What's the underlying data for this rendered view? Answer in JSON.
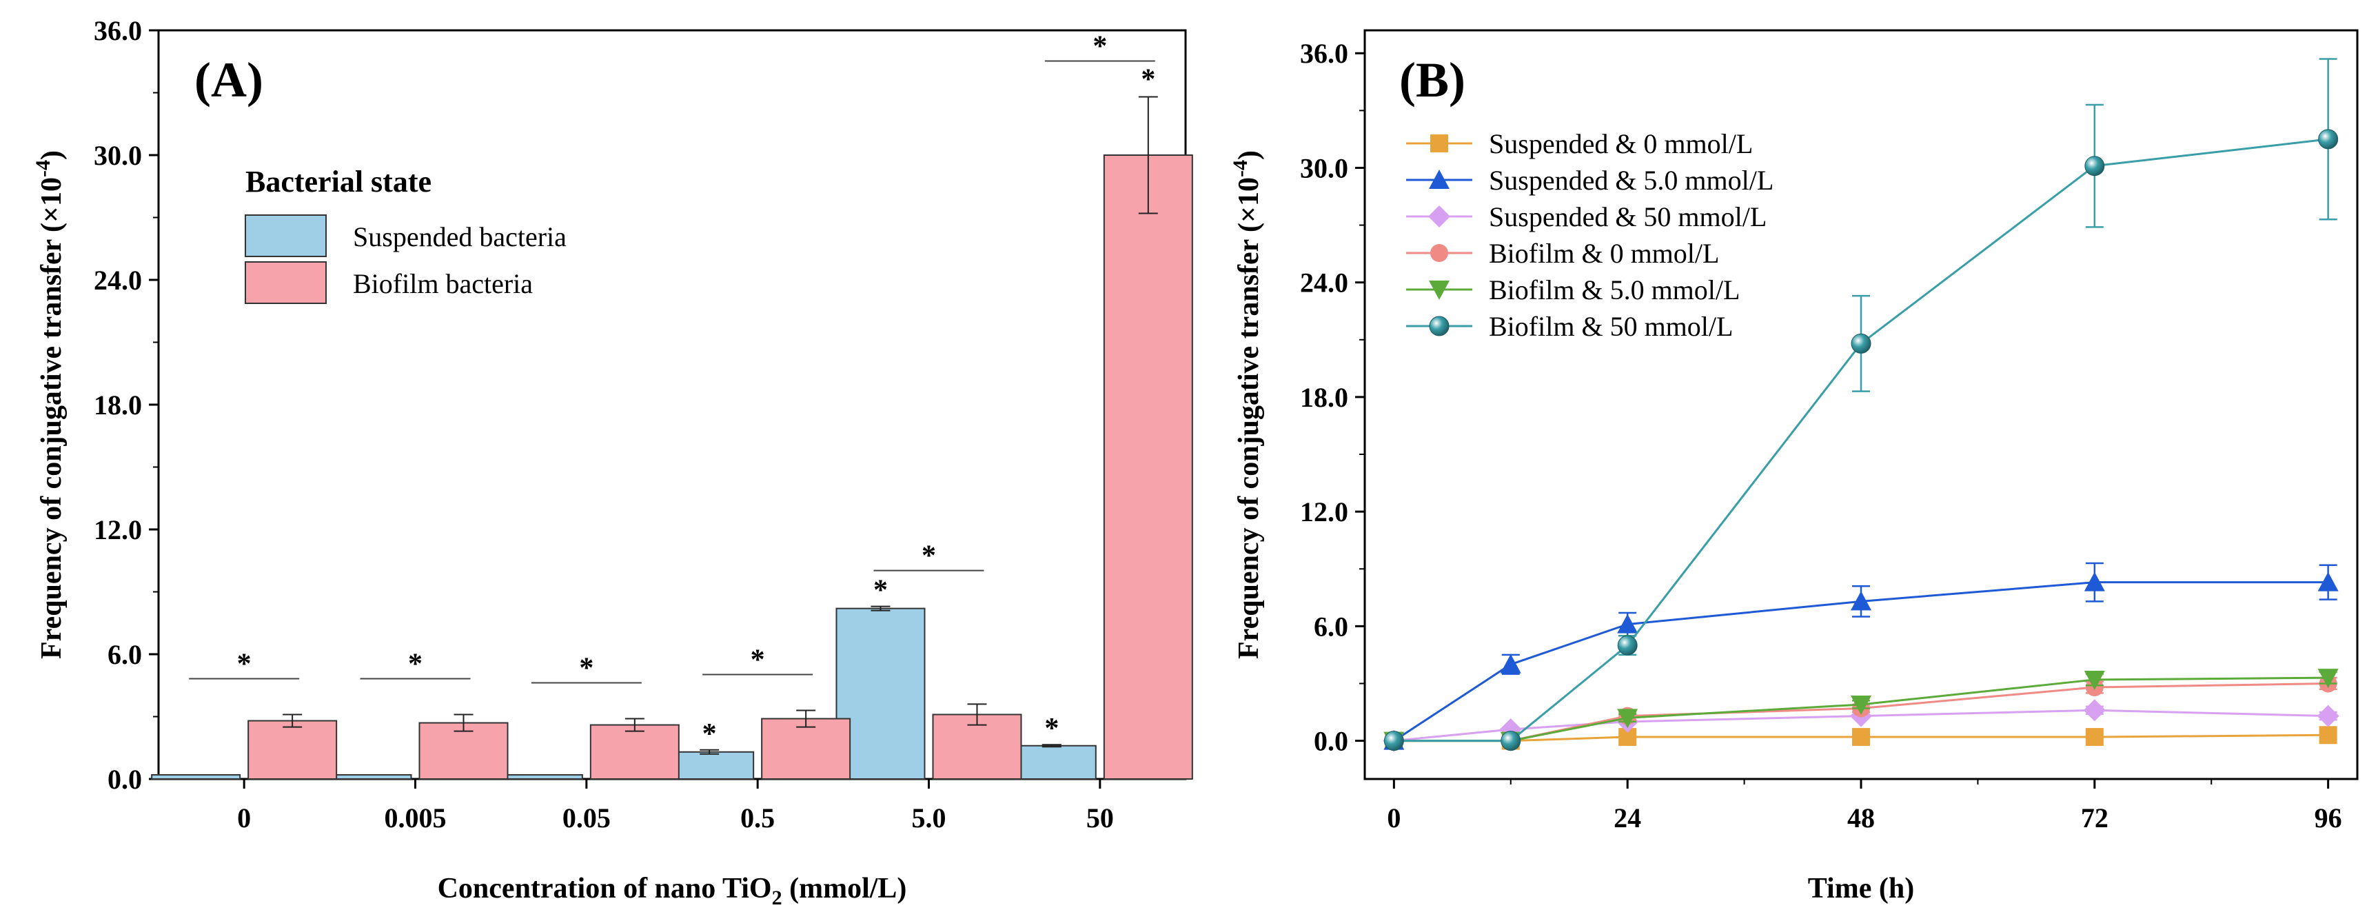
{
  "colors": {
    "suspended_bar": "#9ecfe6",
    "biofilm_bar": "#f6a3ab",
    "axis": "#000000",
    "sus0": "#e8a33b",
    "sus5": "#1f5ad6",
    "sus50": "#d8a0f0",
    "bio0": "#ef8a84",
    "bio5": "#5cab3a",
    "bio50": "#3a9ea8"
  },
  "chart_data": [
    {
      "type": "bar",
      "panel_label": "(A)",
      "xlabel_main": "Concentration of nano TiO",
      "xlabel_sub": "2",
      "xlabel_tail": " (mmol/L)",
      "ylabel": "Frequency of conjugative transfer (×10",
      "ylabel_sup": "-4",
      "ylabel_tail": ")",
      "ylim": [
        0,
        36
      ],
      "yticks": [
        "0.0",
        "6.0",
        "12.0",
        "18.0",
        "24.0",
        "30.0",
        "36.0"
      ],
      "ytick_values": [
        0,
        6,
        12,
        18,
        24,
        30,
        36
      ],
      "categories": [
        "0",
        "0.005",
        "0.05",
        "0.5",
        "5.0",
        "50"
      ],
      "legend_title": "Bacterial state",
      "series": [
        {
          "name": "Suspended bacteria",
          "color_key": "suspended_bar",
          "values": [
            0.2,
            0.2,
            0.2,
            1.3,
            8.2,
            1.6
          ],
          "errors": [
            0,
            0,
            0,
            0.1,
            0.1,
            0.05
          ]
        },
        {
          "name": "Biofilm bacteria",
          "color_key": "biofilm_bar",
          "values": [
            2.8,
            2.7,
            2.6,
            2.9,
            3.1,
            30.0
          ],
          "errors": [
            0.3,
            0.4,
            0.3,
            0.4,
            0.5,
            2.8
          ]
        }
      ],
      "annotations": {
        "marker": "*",
        "pair_brackets": [
          0,
          1,
          2,
          3,
          4,
          5
        ],
        "suspended_stars": [
          3,
          4,
          5
        ],
        "biofilm_stars": [
          5
        ]
      }
    },
    {
      "type": "line",
      "panel_label": "(B)",
      "xlabel": "Time (h)",
      "ylabel": "Frequency of conjugative transfer (×10",
      "ylabel_sup": "-4",
      "ylabel_tail": ")",
      "xlim": [
        -3,
        99
      ],
      "ylim": [
        -2,
        37.2
      ],
      "xticks": [
        "0",
        "24",
        "48",
        "72",
        "96"
      ],
      "xtick_values": [
        0,
        24,
        48,
        72,
        96
      ],
      "yticks": [
        "0.0",
        "6.0",
        "12.0",
        "18.0",
        "24.0",
        "30.0",
        "36.0"
      ],
      "ytick_values": [
        0,
        6,
        12,
        18,
        24,
        30,
        36
      ],
      "x": [
        0,
        12,
        24,
        48,
        72,
        96
      ],
      "series": [
        {
          "name": "Suspended & 0 mmol/L",
          "marker": "square",
          "color_key": "sus0",
          "values": [
            0,
            0,
            0.2,
            0.2,
            0.2,
            0.3
          ],
          "errors": [
            0,
            0,
            0,
            0,
            0,
            0
          ]
        },
        {
          "name": "Suspended & 5.0 mmol/L",
          "marker": "triangle-up",
          "color_key": "sus5",
          "values": [
            0,
            4.0,
            6.1,
            7.3,
            8.3,
            8.3
          ],
          "errors": [
            0,
            0.5,
            0.6,
            0.8,
            1.0,
            0.9
          ]
        },
        {
          "name": "Suspended & 50 mmol/L",
          "marker": "diamond",
          "color_key": "sus50",
          "values": [
            0,
            0.6,
            1.0,
            1.3,
            1.6,
            1.3
          ],
          "errors": [
            0,
            0,
            0,
            0,
            0.2,
            0.2
          ]
        },
        {
          "name": "Biofilm & 0 mmol/L",
          "marker": "circle",
          "color_key": "bio0",
          "values": [
            0,
            0,
            1.3,
            1.7,
            2.8,
            3.0
          ],
          "errors": [
            0,
            0,
            0.2,
            0.2,
            0.3,
            0.3
          ]
        },
        {
          "name": "Biofilm & 5.0 mmol/L",
          "marker": "triangle-down",
          "color_key": "bio5",
          "values": [
            0,
            0,
            1.2,
            1.9,
            3.2,
            3.3
          ],
          "errors": [
            0,
            0,
            0.2,
            0.2,
            0.3,
            0.3
          ]
        },
        {
          "name": "Biofilm & 50 mmol/L",
          "marker": "sphere",
          "color_key": "bio50",
          "values": [
            0,
            0,
            5.0,
            20.8,
            30.1,
            31.5
          ],
          "errors": [
            0,
            0,
            0.5,
            2.5,
            3.2,
            4.2
          ]
        }
      ]
    }
  ]
}
